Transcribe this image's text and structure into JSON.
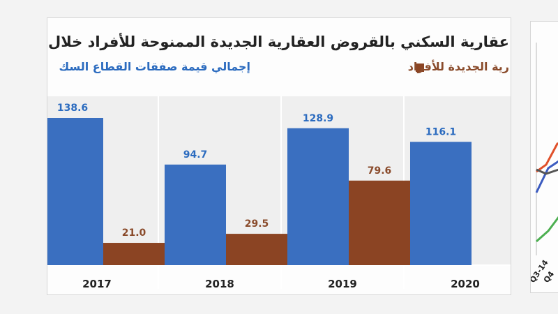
{
  "chart_data": {
    "type": "bar",
    "title": "عقارية السكني بالقروض العقارية الجديدة الممنوحة للأفراد خلال",
    "categories": [
      "2017",
      "2018",
      "2019",
      "2020"
    ],
    "series": [
      {
        "name": "إجمالي قيمة صفقات القطاع السك",
        "color": "#3a6fc0",
        "values": [
          138.6,
          94.7,
          128.9,
          116.1
        ]
      },
      {
        "name": "رية الجديدة للأفراد",
        "color": "#8b4423",
        "values": [
          21.0,
          29.5,
          79.6,
          null
        ]
      }
    ],
    "value_labels": [
      [
        "138.6",
        "94.7",
        "128.9",
        "116.1"
      ],
      [
        "21.0",
        "29.5",
        "79.6",
        ""
      ]
    ],
    "ylim": [
      0,
      160
    ],
    "grid": false,
    "legend_position": "top"
  },
  "right_panel": {
    "tick_labels": [
      "Q3-14",
      "Q4"
    ],
    "line_colors": [
      "#e0502a",
      "#3b5bc0",
      "#4caf50",
      "#555555"
    ]
  }
}
